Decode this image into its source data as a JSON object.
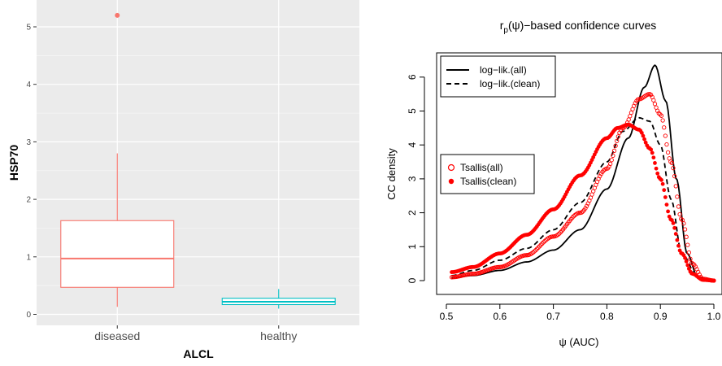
{
  "chart_data": [
    {
      "type": "box",
      "xlabel": "ALCL",
      "ylabel": "HSP70",
      "ylim": [
        0,
        5.4
      ],
      "y_ticks": [
        "0",
        "1",
        "2",
        "3",
        "4",
        "5"
      ],
      "grid": true,
      "background": "#ebebeb",
      "categories": [
        "diseased",
        "healthy"
      ],
      "boxes": [
        {
          "name": "diseased",
          "color": "#f8766d",
          "whisker_low": 0.13,
          "q1": 0.47,
          "median": 0.97,
          "q3": 1.63,
          "whisker_high": 2.8,
          "outliers": [
            5.2
          ]
        },
        {
          "name": "healthy",
          "color": "#00bfc4",
          "whisker_low": 0.1,
          "q1": 0.17,
          "median": 0.22,
          "q3": 0.28,
          "whisker_high": 0.44,
          "outliers": []
        }
      ]
    },
    {
      "type": "line",
      "title_main": "r",
      "title_sub": "p",
      "title_rest": "(ψ)−based confidence curves",
      "xlabel": "ψ (AUC)",
      "ylabel": "CC density",
      "xlim": [
        0.5,
        1.0
      ],
      "ylim": [
        0,
        6.5
      ],
      "x_ticks": [
        "0.5",
        "0.6",
        "0.7",
        "0.8",
        "0.9",
        "1.0"
      ],
      "y_ticks": [
        "0",
        "1",
        "2",
        "3",
        "4",
        "5",
        "6"
      ],
      "grid": false,
      "legend_top": [
        "log−lik.(all)",
        "log−lik.(clean)"
      ],
      "legend_bottom": [
        "Tsallis(all)",
        "Tsallis(clean)"
      ],
      "series": [
        {
          "name": "log−lik.(all)",
          "style": "solid",
          "color": "#000000",
          "x": [
            0.51,
            0.55,
            0.6,
            0.65,
            0.7,
            0.75,
            0.8,
            0.84,
            0.87,
            0.89,
            0.91,
            0.93,
            0.95,
            0.97,
            1.0
          ],
          "y": [
            0.08,
            0.15,
            0.3,
            0.55,
            0.9,
            1.5,
            2.7,
            4.2,
            5.7,
            6.35,
            5.3,
            3.0,
            0.8,
            0.1,
            0.0
          ]
        },
        {
          "name": "log−lik.(clean)",
          "style": "dashed",
          "color": "#000000",
          "x": [
            0.51,
            0.55,
            0.6,
            0.65,
            0.7,
            0.75,
            0.8,
            0.83,
            0.86,
            0.88,
            0.9,
            0.92,
            0.94,
            0.97,
            1.0
          ],
          "y": [
            0.15,
            0.3,
            0.6,
            0.95,
            1.5,
            2.3,
            3.5,
            4.4,
            4.8,
            4.7,
            4.0,
            2.4,
            0.8,
            0.1,
            0.0
          ]
        },
        {
          "name": "Tsallis(all)",
          "style": "open-circles",
          "color": "#ff0000",
          "x": [
            0.51,
            0.55,
            0.6,
            0.65,
            0.7,
            0.75,
            0.8,
            0.83,
            0.86,
            0.88,
            0.9,
            0.92,
            0.94,
            0.96,
            0.98,
            1.0
          ],
          "y": [
            0.1,
            0.2,
            0.4,
            0.75,
            1.3,
            2.0,
            3.3,
            4.5,
            5.35,
            5.5,
            4.9,
            3.5,
            1.8,
            0.5,
            0.05,
            0.0
          ]
        },
        {
          "name": "Tsallis(clean)",
          "style": "filled-dots",
          "color": "#ff0000",
          "x": [
            0.51,
            0.55,
            0.6,
            0.65,
            0.7,
            0.75,
            0.8,
            0.82,
            0.84,
            0.86,
            0.88,
            0.9,
            0.92,
            0.94,
            0.96,
            0.98,
            1.0
          ],
          "y": [
            0.25,
            0.4,
            0.8,
            1.35,
            2.1,
            3.1,
            4.2,
            4.5,
            4.6,
            4.45,
            3.9,
            3.0,
            1.8,
            0.8,
            0.2,
            0.02,
            0.0
          ]
        }
      ]
    }
  ]
}
